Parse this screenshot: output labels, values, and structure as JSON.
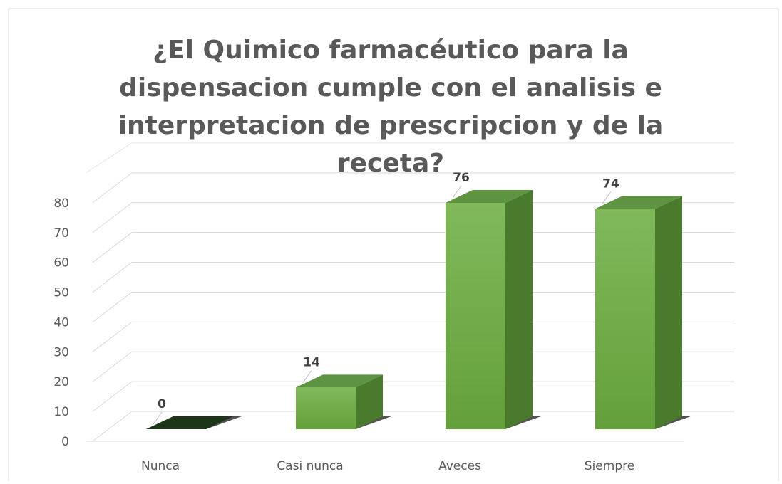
{
  "chart_data": {
    "type": "bar3d",
    "title": "¿El Quimico farmacéutico para la dispensacion cumple con el analisis e interpretacion de prescripcion y de la receta?",
    "categories": [
      "Nunca",
      "Casi nunca",
      "Aveces",
      "Siempre"
    ],
    "values": [
      0,
      14,
      76,
      74
    ],
    "color": "#70ad47",
    "ylim": [
      0,
      90
    ],
    "yticks": [
      0,
      10,
      20,
      30,
      40,
      50,
      60,
      70,
      80
    ],
    "grid": true
  }
}
